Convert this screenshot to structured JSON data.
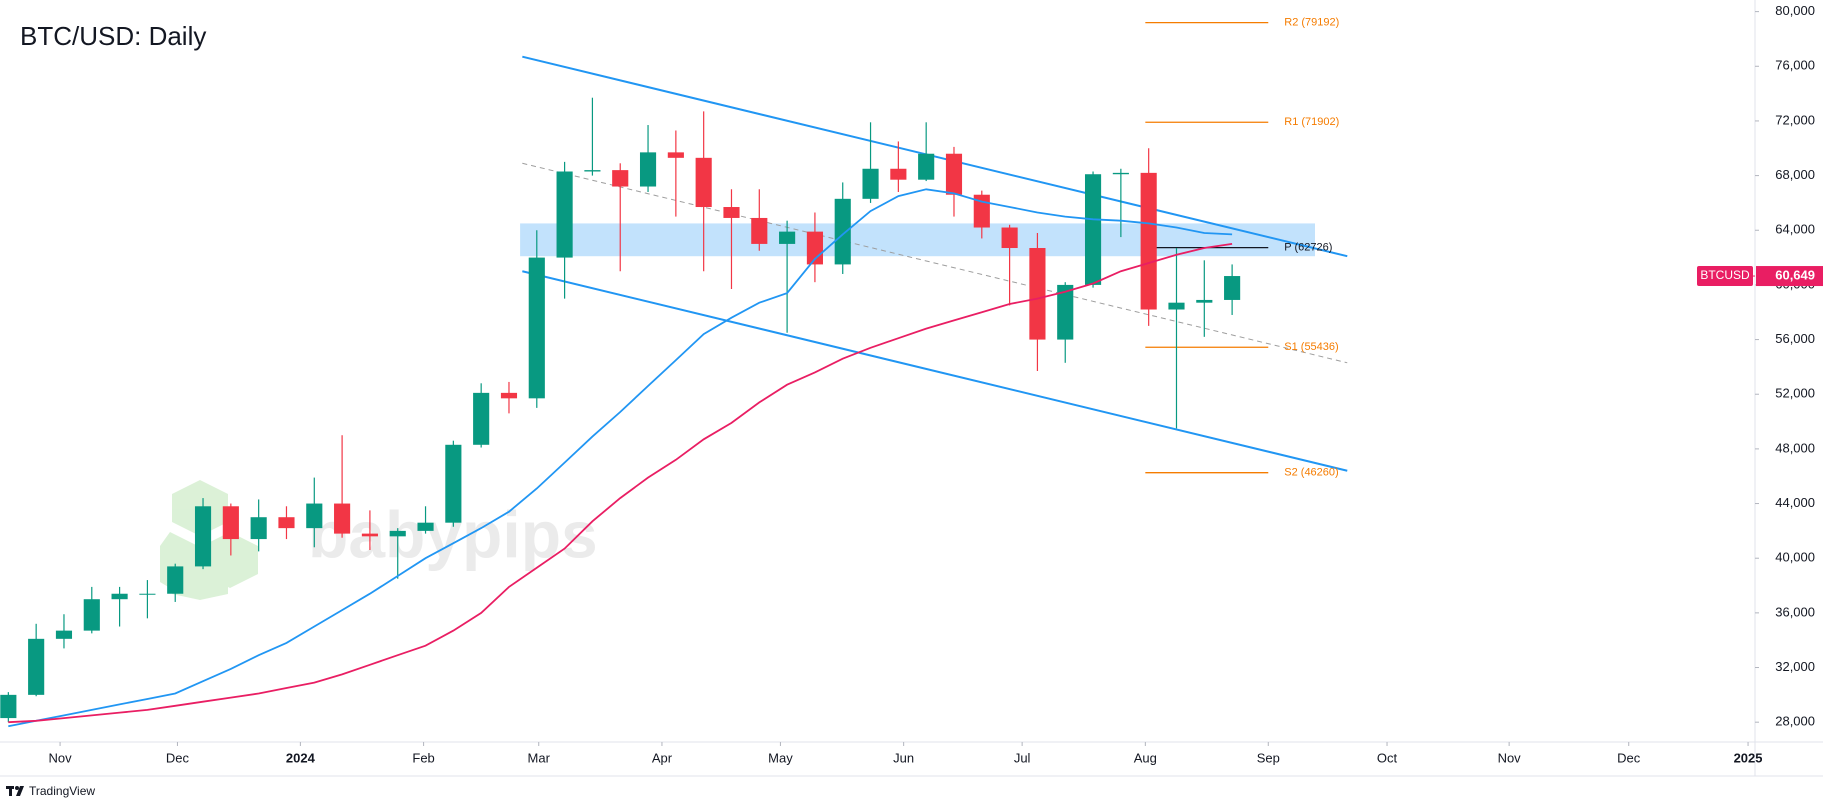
{
  "chart_data": {
    "type": "candlestick",
    "title": "BTC/USD: Daily",
    "watermark": "babypips",
    "footer": "TradingView",
    "up_color": "#089981",
    "down_color": "#f23645",
    "xlim": [
      -0.3,
      62.8
    ],
    "ylim": [
      26550,
      80850
    ],
    "xticks": [
      {
        "value": 1.86,
        "label": "Nov"
      },
      {
        "value": 6.08,
        "label": "Dec"
      },
      {
        "value": 10.5,
        "label": "2024"
      },
      {
        "value": 14.93,
        "label": "Feb"
      },
      {
        "value": 19.07,
        "label": "Mar"
      },
      {
        "value": 23.5,
        "label": "Apr"
      },
      {
        "value": 27.76,
        "label": "May"
      },
      {
        "value": 32.19,
        "label": "Jun"
      },
      {
        "value": 36.45,
        "label": "Jul"
      },
      {
        "value": 40.88,
        "label": "Aug"
      },
      {
        "value": 45.3,
        "label": "Sep"
      },
      {
        "value": 49.57,
        "label": "Oct"
      },
      {
        "value": 53.96,
        "label": "Nov"
      },
      {
        "value": 58.26,
        "label": "Dec"
      },
      {
        "value": 62.55,
        "label": "2025"
      }
    ],
    "yticks": [
      {
        "value": 28000,
        "label": "28,000"
      },
      {
        "value": 32000,
        "label": "32,000"
      },
      {
        "value": 36000,
        "label": "36,000"
      },
      {
        "value": 40000,
        "label": "40,000"
      },
      {
        "value": 44000,
        "label": "44,000"
      },
      {
        "value": 48000,
        "label": "48,000"
      },
      {
        "value": 52000,
        "label": "52,000"
      },
      {
        "value": 56000,
        "label": "56,000"
      },
      {
        "value": 60000,
        "label": "60,000"
      },
      {
        "value": 64000,
        "label": "64,000"
      },
      {
        "value": 68000,
        "label": "68,000"
      },
      {
        "value": 72000,
        "label": "72,000"
      },
      {
        "value": 76000,
        "label": "76,000"
      },
      {
        "value": 80000,
        "label": "80,000"
      }
    ],
    "open": [
      28300,
      30000,
      34100,
      34700,
      37000,
      37400,
      37400,
      39400,
      43800,
      41400,
      43000,
      42200,
      44000,
      41800,
      41600,
      42000,
      42600,
      48300,
      52100,
      51700,
      62000,
      68300,
      68400,
      67200,
      69700,
      69300,
      65700,
      64900,
      63000,
      63900,
      61500,
      66300,
      68500,
      67700,
      69600,
      66600,
      64200,
      62700,
      56000,
      60000,
      68100,
      68200,
      58200,
      58700,
      58900
    ],
    "high": [
      30200,
      35200,
      35900,
      37900,
      37900,
      38400,
      39600,
      44400,
      44000,
      44300,
      43800,
      45900,
      49000,
      43500,
      42200,
      43800,
      48600,
      52800,
      52900,
      64000,
      69000,
      73700,
      68900,
      71700,
      71300,
      72700,
      67000,
      67000,
      64700,
      65300,
      67500,
      71900,
      70500,
      71900,
      70100,
      66900,
      64400,
      63800,
      60200,
      68300,
      68500,
      70000,
      62700,
      61800,
      61500
    ],
    "low": [
      28000,
      29900,
      33400,
      34500,
      35000,
      35600,
      36800,
      39200,
      40200,
      40500,
      41400,
      40800,
      41500,
      40600,
      38500,
      41800,
      42300,
      48100,
      50600,
      51000,
      59000,
      68000,
      61000,
      66800,
      65000,
      61000,
      59700,
      62500,
      56500,
      60200,
      60800,
      66000,
      66800,
      67600,
      65000,
      63400,
      58500,
      53700,
      54300,
      59800,
      63500,
      57000,
      49500,
      56200,
      57800
    ],
    "close": [
      30000,
      34100,
      34700,
      37000,
      37400,
      37400,
      39400,
      43800,
      41400,
      43000,
      42200,
      44000,
      41800,
      41600,
      42000,
      42600,
      48300,
      52100,
      51700,
      62000,
      68300,
      68400,
      67200,
      69700,
      69300,
      65700,
      64900,
      63000,
      63900,
      61500,
      66300,
      68500,
      67700,
      69600,
      66600,
      64200,
      62700,
      56000,
      60000,
      68100,
      68200,
      58200,
      58700,
      58900,
      60649
    ],
    "moving_averages": [
      {
        "color": "#2196f3",
        "values": [
          27700,
          28100,
          28500,
          28900,
          29300,
          29700,
          30100,
          31000,
          31900,
          32900,
          33800,
          35000,
          36200,
          37400,
          38700,
          40000,
          41100,
          42200,
          43400,
          45100,
          47000,
          48900,
          50700,
          52600,
          54500,
          56400,
          57600,
          58700,
          59400,
          61900,
          63700,
          65400,
          66500,
          67000,
          66700,
          66100,
          65700,
          65300,
          65000,
          64800,
          64700,
          64500,
          64200,
          63800,
          63700
        ]
      },
      {
        "color": "#e91e63",
        "values": [
          28000,
          28100,
          28300,
          28500,
          28700,
          28900,
          29200,
          29500,
          29800,
          30100,
          30500,
          30900,
          31500,
          32200,
          32900,
          33600,
          34700,
          36000,
          37900,
          39300,
          40700,
          42700,
          44400,
          45900,
          47200,
          48700,
          49900,
          51400,
          52700,
          53600,
          54600,
          55400,
          56100,
          56800,
          57400,
          58000,
          58600,
          59000,
          59500,
          60100,
          61000,
          61600,
          62200,
          62700,
          63000
        ]
      }
    ],
    "trendlines": [
      {
        "x": [
          18.48,
          48.14
        ],
        "y": [
          76700,
          62100
        ],
        "color": "#2196f3",
        "dashed": false
      },
      {
        "x": [
          18.48,
          48.14
        ],
        "y": [
          61000,
          46400
        ],
        "color": "#2196f3",
        "dashed": false
      },
      {
        "x": [
          18.48,
          48.14
        ],
        "y": [
          68900,
          54300
        ],
        "color": "#9e9e9e",
        "dashed": true
      }
    ],
    "zone": {
      "x": [
        18.4,
        46.98
      ],
      "y": [
        62100,
        64500
      ],
      "color": "#90caf9"
    },
    "pivot_x": [
      40.88,
      45.3
    ],
    "levels": [
      {
        "label": "R2 (79192)",
        "value": 79192,
        "color": "#f57c00"
      },
      {
        "label": "R1 (71902)",
        "value": 71902,
        "color": "#f57c00"
      },
      {
        "label": "P (62726)",
        "value": 62726,
        "color": "#131722"
      },
      {
        "label": "S1 (55436)",
        "value": 55436,
        "color": "#f57c00"
      },
      {
        "label": "S2 (46260)",
        "value": 46260,
        "color": "#f57c00"
      }
    ],
    "last_price": {
      "symbol": "BTCUSD",
      "value": 60649,
      "label": "60,649",
      "color": "#e91e63"
    }
  }
}
